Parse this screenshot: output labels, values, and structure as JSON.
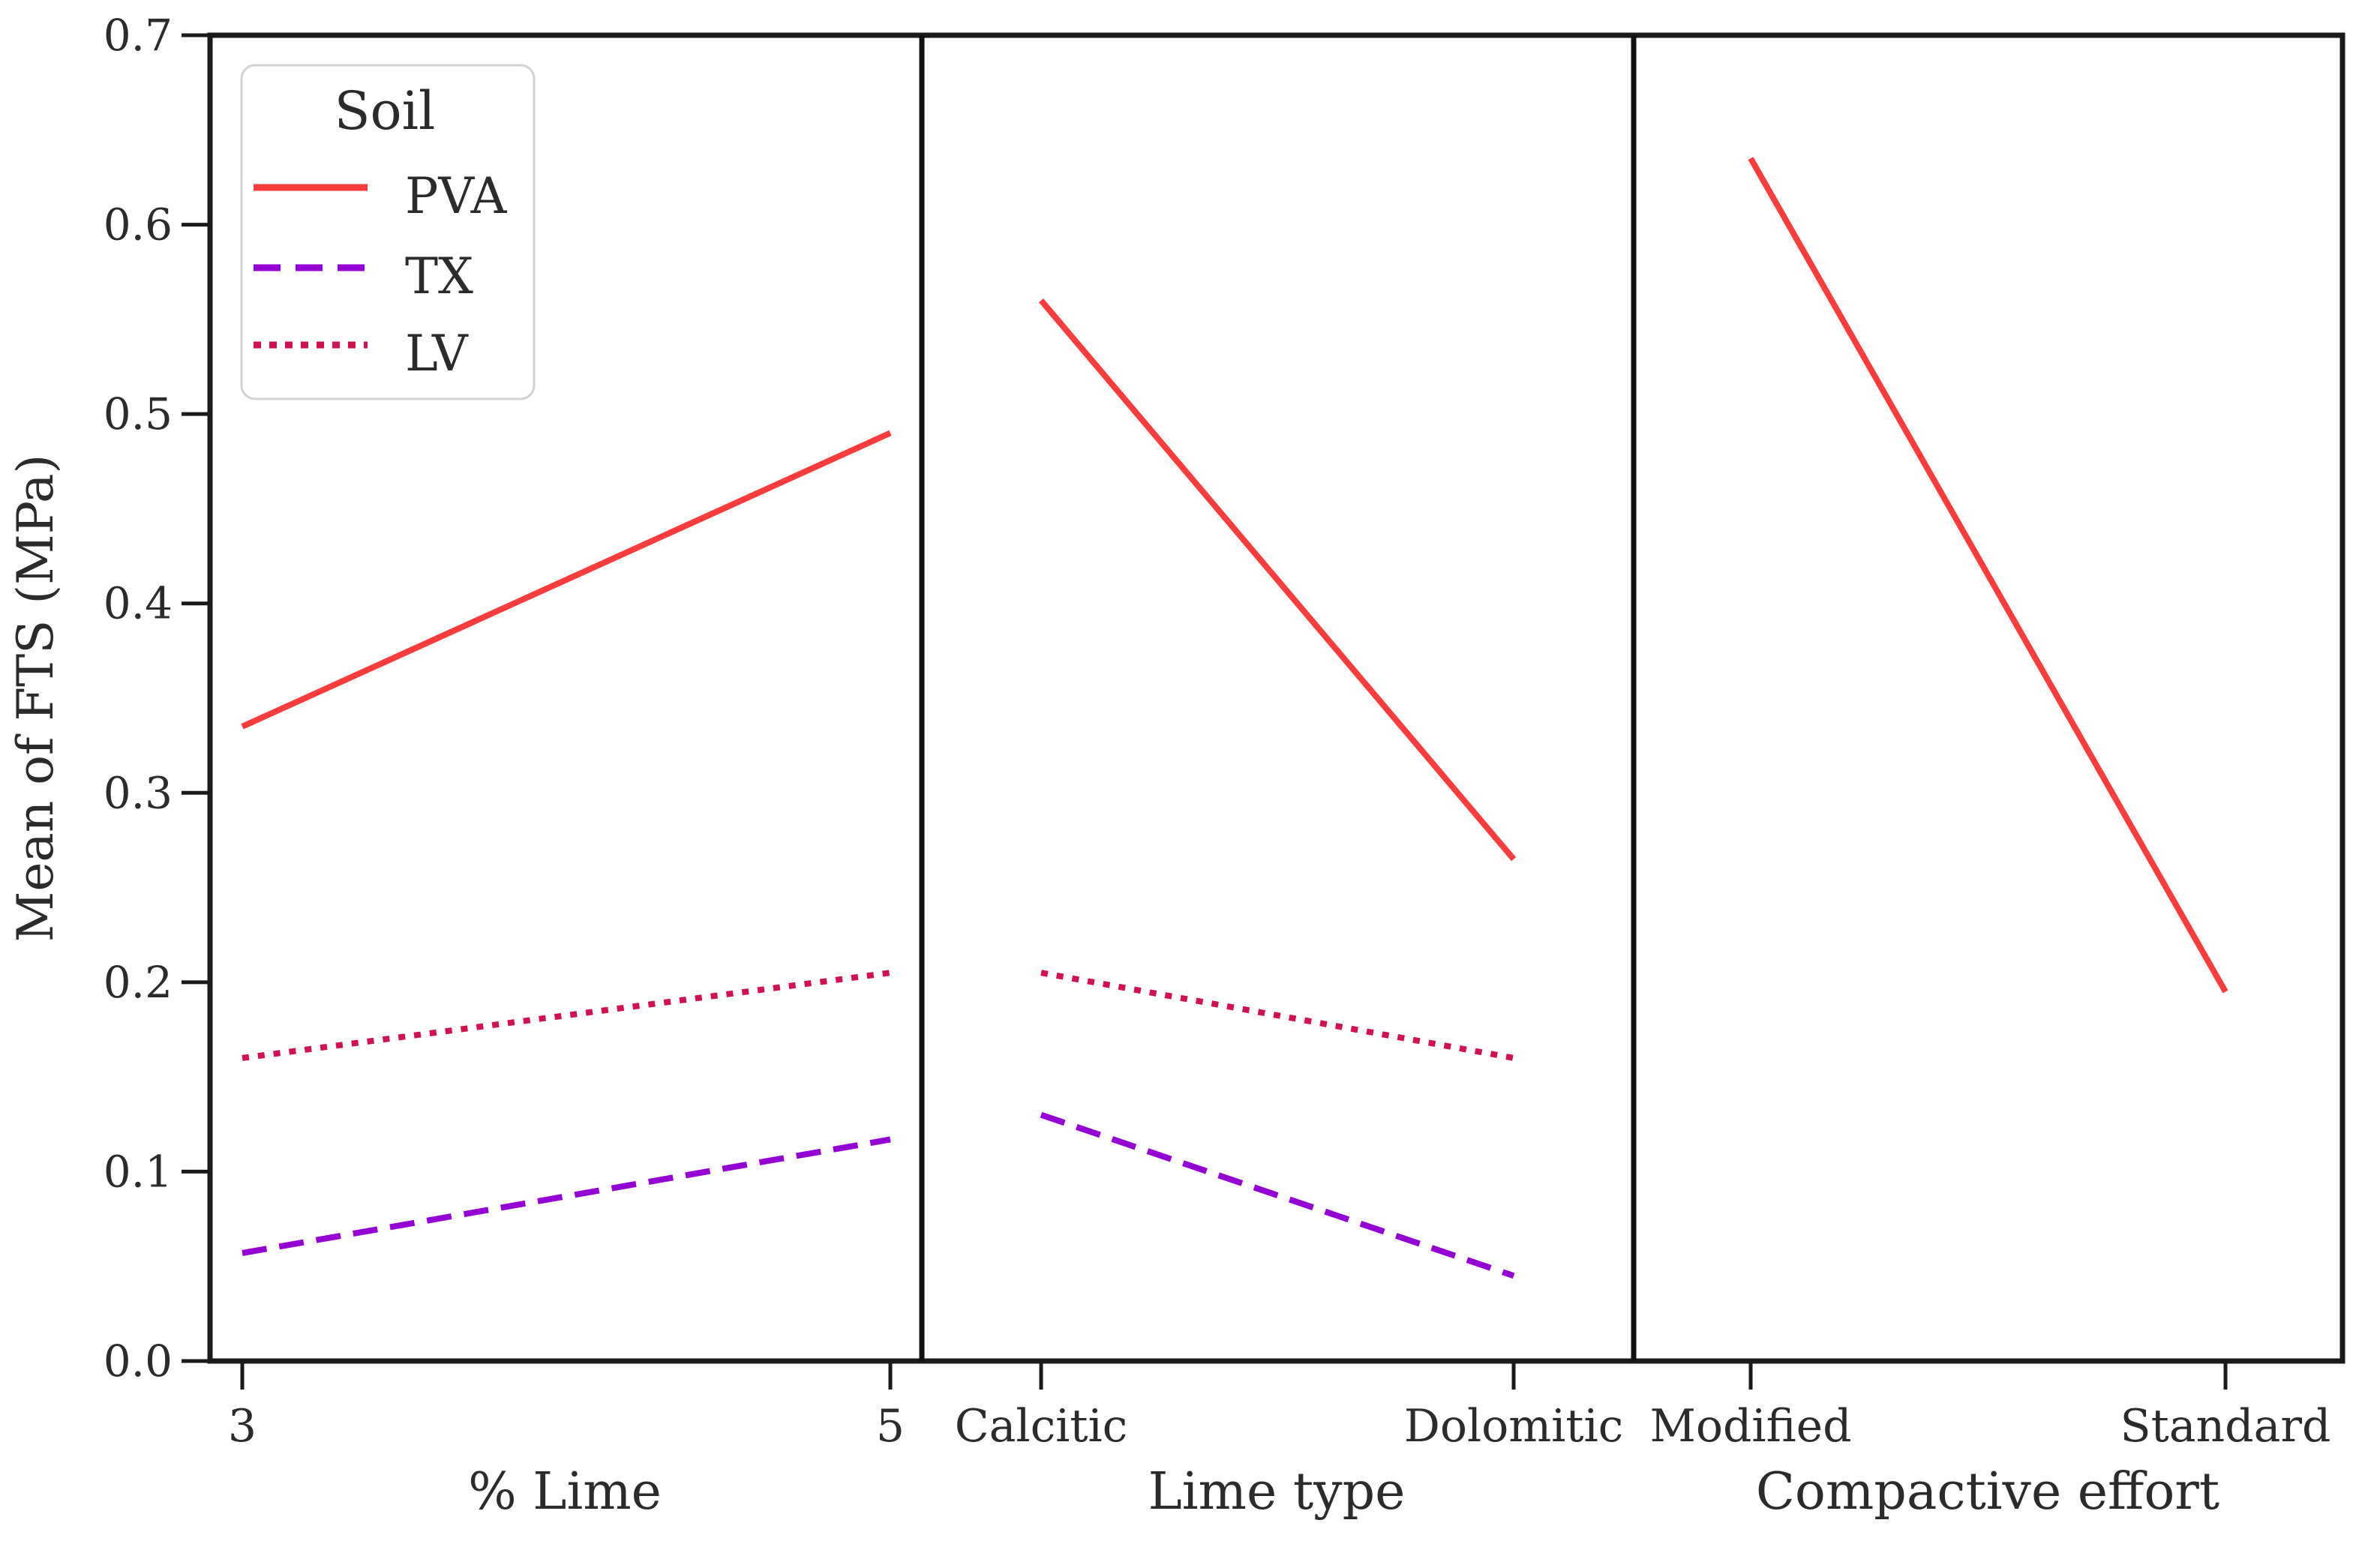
{
  "y_axis": {
    "label": "Mean of FTS (MPa)",
    "ticks": [
      "0.0",
      "0.1",
      "0.2",
      "0.3",
      "0.4",
      "0.5",
      "0.6",
      "0.7"
    ],
    "min": 0.0,
    "max": 0.7
  },
  "legend": {
    "title": "Soil",
    "entries": [
      {
        "label": "PVA",
        "color": "#fa3c3c",
        "style": "solid"
      },
      {
        "label": "TX",
        "color": "#9400d3",
        "style": "dashed"
      },
      {
        "label": "LV",
        "color": "#d2124e",
        "style": "dotted"
      }
    ]
  },
  "chart_data": {
    "type": "line",
    "subtype": "main-effects-interaction-plot",
    "ylabel": "Mean of FTS (MPa)",
    "ylim": [
      0.0,
      0.7
    ],
    "grid": "off",
    "legend_position": "upper-left",
    "panels": [
      {
        "xlabel": "% Lime",
        "categories": [
          "3",
          "5"
        ],
        "series": [
          {
            "name": "PVA",
            "style": "solid",
            "color": "#fa3c3c",
            "values": [
              0.335,
              0.49
            ]
          },
          {
            "name": "TX",
            "style": "dashed",
            "color": "#9400d3",
            "values": [
              0.057,
              0.117
            ]
          },
          {
            "name": "LV",
            "style": "dotted",
            "color": "#d2124e",
            "values": [
              0.16,
              0.205
            ]
          }
        ]
      },
      {
        "xlabel": "Lime type",
        "categories": [
          "Calcitic",
          "Dolomitic"
        ],
        "series": [
          {
            "name": "PVA",
            "style": "solid",
            "color": "#fa3c3c",
            "values": [
              0.56,
              0.265
            ]
          },
          {
            "name": "TX",
            "style": "dashed",
            "color": "#9400d3",
            "values": [
              0.13,
              0.045
            ]
          },
          {
            "name": "LV",
            "style": "dotted",
            "color": "#d2124e",
            "values": [
              0.205,
              0.16
            ]
          }
        ]
      },
      {
        "xlabel": "Compactive effort",
        "categories": [
          "Modified",
          "Standard"
        ],
        "series": [
          {
            "name": "PVA",
            "style": "solid",
            "color": "#fa3c3c",
            "values": [
              0.635,
              0.195
            ]
          }
        ]
      }
    ]
  }
}
